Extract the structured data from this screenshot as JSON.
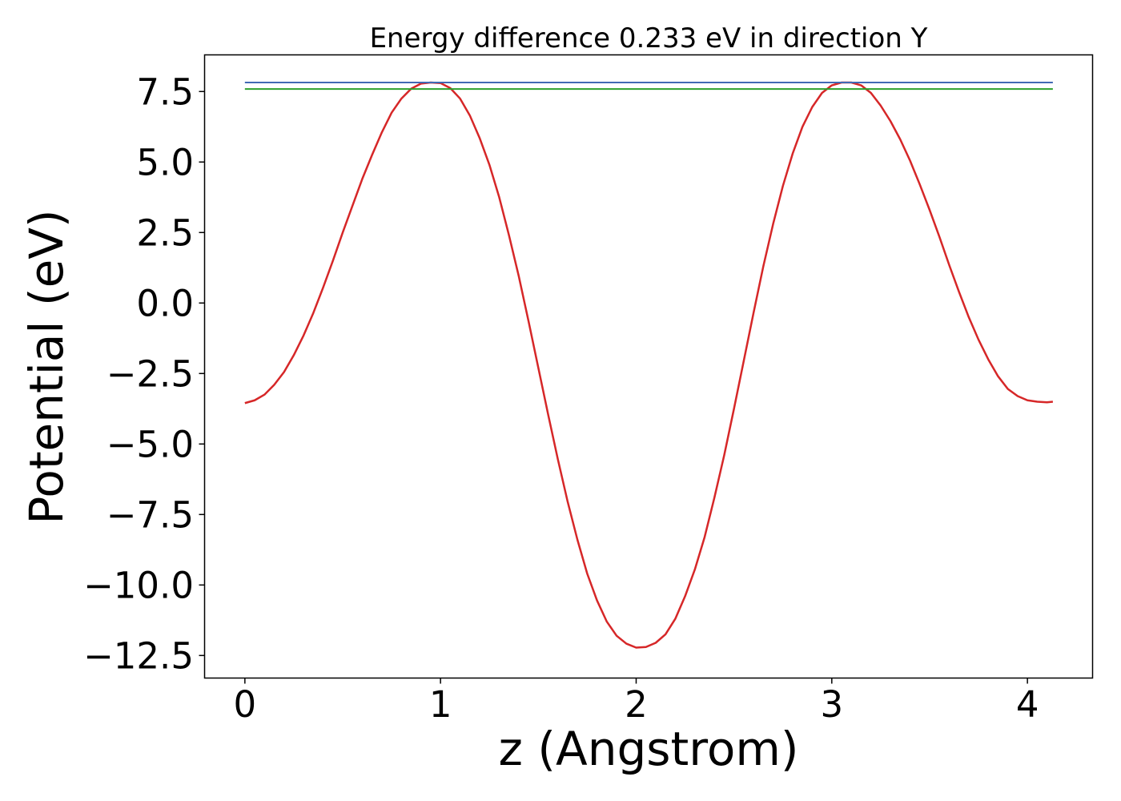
{
  "chart_data": {
    "type": "line",
    "title": "Energy difference 0.233 eV in direction Y",
    "xlabel": "z (Angstrom)",
    "ylabel": "Potential (eV)",
    "xlim": [
      -0.206,
      4.333
    ],
    "ylim": [
      -13.3,
      8.8
    ],
    "xticks": [
      0,
      1,
      2,
      3,
      4
    ],
    "xtick_labels": [
      "0",
      "1",
      "2",
      "3",
      "4"
    ],
    "yticks": [
      7.5,
      5.0,
      2.5,
      0.0,
      -2.5,
      -5.0,
      -7.5,
      -10.0,
      -12.5
    ],
    "ytick_labels": [
      "7.5",
      "5.0",
      "2.5",
      "0.0",
      "−2.5",
      "−5.0",
      "−7.5",
      "−10.0",
      "−12.5"
    ],
    "grid": false,
    "legend": "none",
    "series": [
      {
        "color": "#d62728",
        "x": [
          0,
          0.05,
          0.1,
          0.15,
          0.2,
          0.25,
          0.3,
          0.35,
          0.4,
          0.45,
          0.5,
          0.55,
          0.6,
          0.65,
          0.7,
          0.75,
          0.8,
          0.85,
          0.9,
          0.95,
          1.0,
          1.05,
          1.1,
          1.15,
          1.2,
          1.25,
          1.3,
          1.35,
          1.4,
          1.45,
          1.5,
          1.55,
          1.6,
          1.65,
          1.7,
          1.75,
          1.8,
          1.85,
          1.9,
          1.95,
          2.0,
          2.05,
          2.1,
          2.15,
          2.2,
          2.25,
          2.3,
          2.35,
          2.4,
          2.45,
          2.5,
          2.55,
          2.6,
          2.65,
          2.7,
          2.75,
          2.8,
          2.85,
          2.9,
          2.95,
          3.0,
          3.05,
          3.1,
          3.15,
          3.2,
          3.25,
          3.3,
          3.35,
          3.4,
          3.45,
          3.5,
          3.55,
          3.6,
          3.65,
          3.7,
          3.75,
          3.8,
          3.85,
          3.9,
          3.95,
          4.0,
          4.05,
          4.1,
          4.13
        ],
        "y": [
          -3.55,
          -3.45,
          -3.25,
          -2.9,
          -2.45,
          -1.85,
          -1.15,
          -0.35,
          0.55,
          1.5,
          2.5,
          3.45,
          4.4,
          5.25,
          6.05,
          6.75,
          7.25,
          7.6,
          7.78,
          7.82,
          7.8,
          7.62,
          7.25,
          6.65,
          5.85,
          4.9,
          3.75,
          2.4,
          0.95,
          -0.65,
          -2.3,
          -3.95,
          -5.55,
          -7.05,
          -8.4,
          -9.6,
          -10.55,
          -11.3,
          -11.8,
          -12.08,
          -12.22,
          -12.2,
          -12.05,
          -11.75,
          -11.2,
          -10.4,
          -9.45,
          -8.3,
          -6.9,
          -5.4,
          -3.75,
          -2.05,
          -0.35,
          1.3,
          2.8,
          4.15,
          5.3,
          6.25,
          6.95,
          7.45,
          7.72,
          7.82,
          7.82,
          7.72,
          7.45,
          7.0,
          6.45,
          5.8,
          5.05,
          4.2,
          3.3,
          2.35,
          1.35,
          0.4,
          -0.5,
          -1.3,
          -2.0,
          -2.6,
          -3.05,
          -3.3,
          -3.45,
          -3.5,
          -3.52,
          -3.5
        ]
      },
      {
        "color": "#4169b5",
        "x": [
          0,
          4.13
        ],
        "y": [
          7.82,
          7.82
        ]
      },
      {
        "color": "#2ca02c",
        "x": [
          0,
          4.13
        ],
        "y": [
          7.59,
          7.59
        ]
      }
    ]
  }
}
